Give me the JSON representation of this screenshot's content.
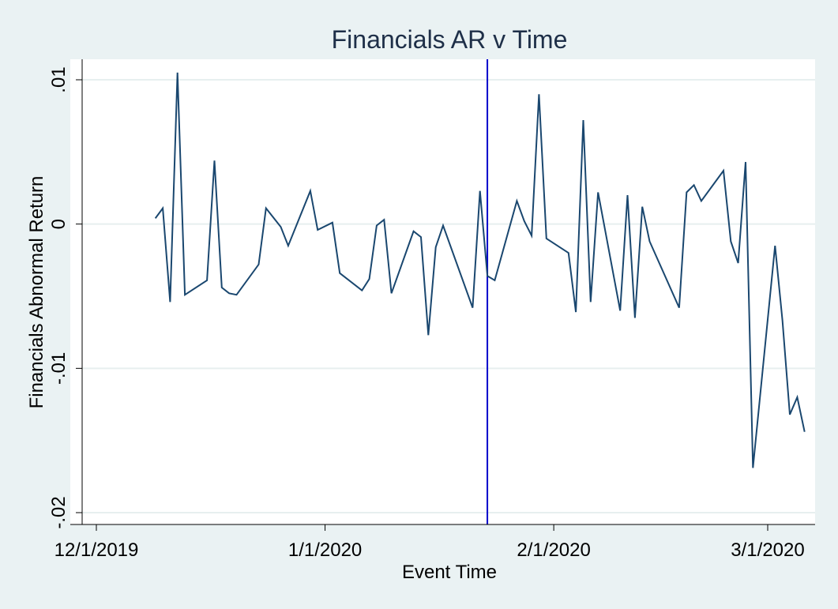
{
  "chart_data": {
    "type": "line",
    "title": "Financials AR v Time",
    "xlabel": "Event Time",
    "ylabel": "Financials Abnormal Return",
    "x_tick_labels": [
      "12/1/2019",
      "1/1/2020",
      "2/1/2020",
      "3/1/2020"
    ],
    "x_tick_values": [
      "2019-12-01",
      "2020-01-01",
      "2020-02-01",
      "2020-03-01"
    ],
    "y_tick_labels": [
      ".01",
      "0",
      "-.01",
      "-.02"
    ],
    "y_tick_values": [
      0.01,
      0,
      -0.01,
      -0.02
    ],
    "xlim": [
      "2019-12-01",
      "2020-03-06"
    ],
    "ylim": [
      -0.02,
      0.01
    ],
    "grid": "horizontal",
    "event_line": "2020-01-23",
    "series": [
      {
        "points": [
          {
            "x": "2019-12-09",
            "y": 0.0004
          },
          {
            "x": "2019-12-10",
            "y": 0.0011
          },
          {
            "x": "2019-12-11",
            "y": -0.0054
          },
          {
            "x": "2019-12-12",
            "y": 0.0105
          },
          {
            "x": "2019-12-13",
            "y": -0.0049
          },
          {
            "x": "2019-12-16",
            "y": -0.0039
          },
          {
            "x": "2019-12-17",
            "y": 0.0044
          },
          {
            "x": "2019-12-18",
            "y": -0.0044
          },
          {
            "x": "2019-12-19",
            "y": -0.0048
          },
          {
            "x": "2019-12-20",
            "y": -0.0049
          },
          {
            "x": "2019-12-23",
            "y": -0.0028
          },
          {
            "x": "2019-12-24",
            "y": 0.0011
          },
          {
            "x": "2019-12-26",
            "y": -0.0002
          },
          {
            "x": "2019-12-27",
            "y": -0.0015
          },
          {
            "x": "2019-12-30",
            "y": 0.0023
          },
          {
            "x": "2019-12-31",
            "y": -0.0004
          },
          {
            "x": "2020-01-02",
            "y": 0.0001
          },
          {
            "x": "2020-01-03",
            "y": -0.0034
          },
          {
            "x": "2020-01-06",
            "y": -0.0046
          },
          {
            "x": "2020-01-07",
            "y": -0.0038
          },
          {
            "x": "2020-01-08",
            "y": -0.0001
          },
          {
            "x": "2020-01-09",
            "y": 0.0003
          },
          {
            "x": "2020-01-10",
            "y": -0.0048
          },
          {
            "x": "2020-01-13",
            "y": -0.0005
          },
          {
            "x": "2020-01-14",
            "y": -0.0009
          },
          {
            "x": "2020-01-15",
            "y": -0.0077
          },
          {
            "x": "2020-01-16",
            "y": -0.0016
          },
          {
            "x": "2020-01-17",
            "y": -0.0001
          },
          {
            "x": "2020-01-21",
            "y": -0.0058
          },
          {
            "x": "2020-01-22",
            "y": 0.0023
          },
          {
            "x": "2020-01-23",
            "y": -0.0036
          },
          {
            "x": "2020-01-24",
            "y": -0.0039
          },
          {
            "x": "2020-01-27",
            "y": 0.0016
          },
          {
            "x": "2020-01-28",
            "y": 0.0002
          },
          {
            "x": "2020-01-29",
            "y": -0.0008
          },
          {
            "x": "2020-01-30",
            "y": 0.009
          },
          {
            "x": "2020-01-31",
            "y": -0.001
          },
          {
            "x": "2020-02-03",
            "y": -0.002
          },
          {
            "x": "2020-02-04",
            "y": -0.0061
          },
          {
            "x": "2020-02-05",
            "y": 0.0072
          },
          {
            "x": "2020-02-06",
            "y": -0.0054
          },
          {
            "x": "2020-02-07",
            "y": 0.0022
          },
          {
            "x": "2020-02-10",
            "y": -0.006
          },
          {
            "x": "2020-02-11",
            "y": 0.002
          },
          {
            "x": "2020-02-12",
            "y": -0.0065
          },
          {
            "x": "2020-02-13",
            "y": 0.0012
          },
          {
            "x": "2020-02-14",
            "y": -0.0012
          },
          {
            "x": "2020-02-18",
            "y": -0.0058
          },
          {
            "x": "2020-02-19",
            "y": 0.0022
          },
          {
            "x": "2020-02-20",
            "y": 0.0027
          },
          {
            "x": "2020-02-21",
            "y": 0.0016
          },
          {
            "x": "2020-02-24",
            "y": 0.0037
          },
          {
            "x": "2020-02-25",
            "y": -0.0012
          },
          {
            "x": "2020-02-26",
            "y": -0.0027
          },
          {
            "x": "2020-02-27",
            "y": 0.0043
          },
          {
            "x": "2020-02-28",
            "y": -0.0169
          },
          {
            "x": "2020-03-02",
            "y": -0.0015
          },
          {
            "x": "2020-03-03",
            "y": -0.0067
          },
          {
            "x": "2020-03-04",
            "y": -0.0132
          },
          {
            "x": "2020-03-05",
            "y": -0.012
          },
          {
            "x": "2020-03-06",
            "y": -0.0144
          }
        ]
      }
    ],
    "colors": {
      "background": "#eaf2f3",
      "plot_area": "#ffffff",
      "gridline": "#e7efef",
      "line": "#1a476f",
      "event_line": "#0000cc",
      "title": "#1e2f48"
    }
  }
}
